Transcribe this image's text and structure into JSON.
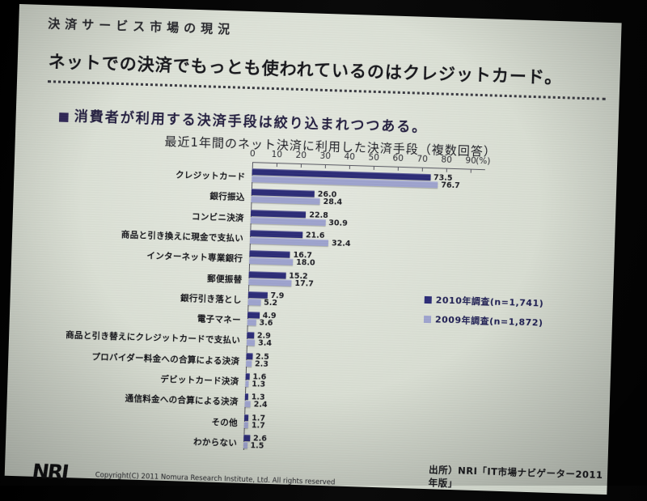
{
  "slide": {
    "kicker": "決済サービス市場の現況",
    "headline": "ネットでの決済でもっとも使われているのはクレジットカード。",
    "bullet_icon": "■",
    "bullet_text": "消費者が利用する決済手段は絞り込まれつつある。",
    "footer": {
      "logo_text": "NRI",
      "copyright": "Copyright(C) 2011 Nomura Research Institute, Ltd. All rights reserved",
      "source": "出所）NRI「IT市場ナビゲーター2011年版」"
    }
  },
  "chart_data": {
    "type": "bar",
    "orientation": "horizontal",
    "title": "最近1年間のネット決済に利用した決済手段（複数回答）",
    "unit": "(%)",
    "xlim": [
      0,
      90
    ],
    "xticks": [
      0,
      10,
      20,
      30,
      40,
      50,
      60,
      70,
      80,
      90
    ],
    "grid": false,
    "value_labels": true,
    "legend_position": "middle-right",
    "categories": [
      "クレジットカード",
      "銀行振込",
      "コンビニ決済",
      "商品と引き換えに現金で支払い",
      "インターネット専業銀行",
      "郵便振替",
      "銀行引き落とし",
      "電子マネー",
      "商品と引き替えにクレジットカードで支払い",
      "プロバイダー料金への合算による決済",
      "デビットカード決済",
      "通信料金への合算による決済",
      "その他",
      "わからない"
    ],
    "series": [
      {
        "name": "2010年調査(n=1,741)",
        "color": "#2d2d78",
        "values": [
          73.5,
          26.0,
          22.8,
          21.6,
          16.7,
          15.2,
          7.9,
          4.9,
          2.9,
          2.5,
          1.6,
          1.3,
          1.7,
          2.6
        ]
      },
      {
        "name": "2009年調査(n=1,872)",
        "color": "#9fa4cf",
        "values": [
          76.7,
          28.4,
          30.9,
          32.4,
          18.0,
          17.7,
          5.2,
          3.6,
          3.4,
          2.3,
          1.3,
          2.4,
          1.7,
          1.5
        ]
      }
    ]
  },
  "colors": {
    "slide_bg": "#d9ded3",
    "backdrop": "#000000",
    "text": "#1b1b20",
    "bar_2010": "#2d2d78",
    "bar_2009": "#9fa4cf"
  }
}
